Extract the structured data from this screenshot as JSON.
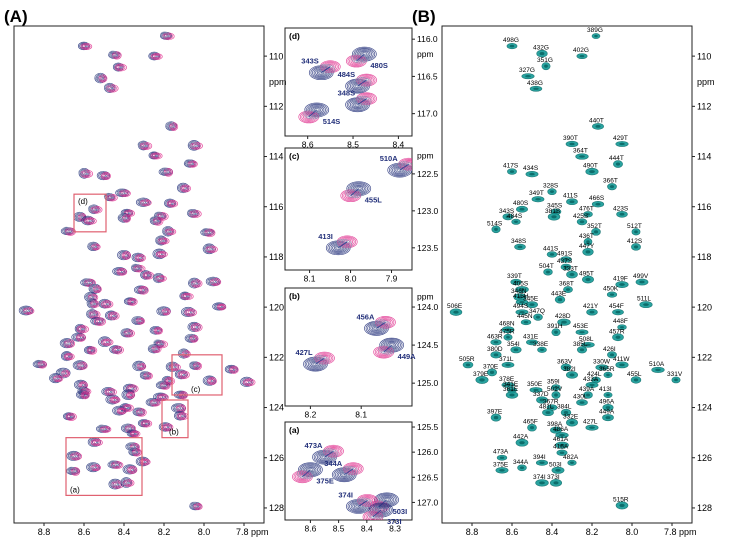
{
  "labels": {
    "A": "(A)",
    "B": "(B)",
    "ppm": "ppm"
  },
  "colors": {
    "navy": "#23307a",
    "pink": "#e0338f",
    "slate": "#8a93b4",
    "teal": "#179c99",
    "box": "#e06070",
    "arrow": "#3a4a96"
  },
  "chart_data": [
    {
      "id": "A_main",
      "type": "scatter",
      "title": "(A)",
      "xlabel": "ppm",
      "ylabel": "ppm",
      "xlim": [
        8.95,
        7.7
      ],
      "ylim": [
        108.8,
        128.6
      ],
      "xticks": [
        8.8,
        8.6,
        8.4,
        8.2,
        8.0,
        7.8
      ],
      "xtick_labels": [
        "8.8",
        "8.6",
        "8.4",
        "8.2",
        "8.0",
        "7.8 ppm"
      ],
      "yticks": [
        110,
        112,
        114,
        116,
        118,
        120,
        122,
        124,
        126,
        128
      ],
      "yticks_fmt": [
        "110",
        "112",
        "114",
        "116",
        "118",
        "120",
        "122",
        "124",
        "126",
        "128"
      ],
      "boxes": [
        {
          "label": "(a)",
          "x0": 8.69,
          "x1": 8.31,
          "y0": 125.2,
          "y1": 127.5
        },
        {
          "label": "(b)",
          "x0": 8.21,
          "x1": 8.08,
          "y0": 123.7,
          "y1": 125.2
        },
        {
          "label": "(c)",
          "x0": 8.16,
          "x1": 7.91,
          "y0": 121.9,
          "y1": 123.5
        },
        {
          "label": "(d)",
          "x0": 8.65,
          "x1": 8.49,
          "y0": 115.5,
          "y1": 117.0
        }
      ]
    },
    {
      "id": "d_inset",
      "type": "scatter",
      "title": "(d)",
      "xlim": [
        8.65,
        8.37
      ],
      "ylim": [
        115.85,
        117.3
      ],
      "xticks": [
        8.6,
        8.5,
        8.4
      ],
      "xtick_labels": [
        "8.6",
        "8.5",
        "8.4"
      ],
      "yticks": [
        116.0,
        116.5,
        117.0
      ],
      "yticks_fmt": [
        "116.0",
        "116.5",
        "117.0"
      ],
      "ppm_label_y": 116.2,
      "peaks": [
        {
          "label": "343S",
          "x": 8.57,
          "y": 116.45
        },
        {
          "label": "480S",
          "x": 8.475,
          "y": 116.2
        },
        {
          "label": "484S",
          "x": 8.49,
          "y": 116.63
        },
        {
          "label": "514S",
          "x": 8.58,
          "y": 116.95
        },
        {
          "label": "348S",
          "x": 8.49,
          "y": 116.88
        }
      ]
    },
    {
      "id": "c_inset",
      "type": "scatter",
      "title": "(c)",
      "xlim": [
        8.16,
        7.85
      ],
      "ylim": [
        122.15,
        123.8
      ],
      "xticks": [
        8.1,
        8.0,
        7.9
      ],
      "xtick_labels": [
        "8.1",
        "8.0",
        "7.9"
      ],
      "yticks": [
        122.5,
        123.0,
        123.5
      ],
      "yticks_fmt": [
        "122.5",
        "123.0",
        "123.5"
      ],
      "ppm_label_y": 122.25,
      "peaks": [
        {
          "label": "510A",
          "x": 7.88,
          "y": 122.45
        },
        {
          "label": "455L",
          "x": 7.98,
          "y": 122.7
        },
        {
          "label": "413I",
          "x": 8.03,
          "y": 123.5
        }
      ]
    },
    {
      "id": "b_inset",
      "type": "scatter",
      "title": "(b)",
      "xlim": [
        8.25,
        8.0
      ],
      "ylim": [
        123.75,
        125.3
      ],
      "xticks": [
        8.2,
        8.1
      ],
      "xtick_labels": [
        "8.2",
        "8.1"
      ],
      "yticks": [
        124.0,
        124.5,
        125.0
      ],
      "yticks_fmt": [
        "124.0",
        "124.5",
        "125.0"
      ],
      "ppm_label_y": 123.86,
      "peaks": [
        {
          "label": "456A",
          "x": 8.07,
          "y": 124.28
        },
        {
          "label": "449A",
          "x": 8.04,
          "y": 124.5
        },
        {
          "label": "427L",
          "x": 8.19,
          "y": 124.75
        }
      ]
    },
    {
      "id": "a_inset",
      "type": "scatter",
      "title": "(a)",
      "xlim": [
        8.69,
        8.24
      ],
      "ylim": [
        125.4,
        127.35
      ],
      "xticks": [
        8.6,
        8.5,
        8.4,
        8.3
      ],
      "xtick_labels": [
        "8.6",
        "8.5",
        "8.4",
        "8.3"
      ],
      "yticks": [
        125.5,
        126.0,
        126.5,
        127.0
      ],
      "yticks_fmt": [
        "125.5",
        "126.0",
        "126.5",
        "127.0"
      ],
      "peaks": [
        {
          "label": "473A",
          "x": 8.55,
          "y": 126.1
        },
        {
          "label": "375E",
          "x": 8.6,
          "y": 126.35
        },
        {
          "label": "344A",
          "x": 8.48,
          "y": 126.45
        },
        {
          "label": "503I",
          "x": 8.33,
          "y": 126.95
        },
        {
          "label": "374I",
          "x": 8.43,
          "y": 127.08
        },
        {
          "label": "373I",
          "x": 8.35,
          "y": 127.15
        }
      ]
    },
    {
      "id": "B_main",
      "type": "scatter",
      "title": "(B)",
      "xlabel": "ppm",
      "ylabel": "ppm",
      "xlim": [
        8.95,
        7.7
      ],
      "ylim": [
        108.8,
        128.6
      ],
      "xticks": [
        8.8,
        8.6,
        8.4,
        8.2,
        8.0,
        7.8
      ],
      "xtick_labels": [
        "8.8",
        "8.6",
        "8.4",
        "8.2",
        "8.0",
        "7.8 ppm"
      ],
      "yticks": [
        110,
        112,
        114,
        116,
        118,
        120,
        122,
        124,
        126,
        128
      ],
      "yticks_fmt": [
        "110",
        "112",
        "114",
        "116",
        "118",
        "120",
        "122",
        "124",
        "126",
        "128"
      ],
      "peaks": [
        {
          "label": "389G",
          "x": 8.18,
          "y": 109.2
        },
        {
          "label": "498G",
          "x": 8.6,
          "y": 109.6
        },
        {
          "label": "432G",
          "x": 8.45,
          "y": 109.9
        },
        {
          "label": "402G",
          "x": 8.25,
          "y": 110.0
        },
        {
          "label": "351G",
          "x": 8.43,
          "y": 110.4
        },
        {
          "label": "327G",
          "x": 8.52,
          "y": 110.8
        },
        {
          "label": "438G",
          "x": 8.48,
          "y": 111.3
        },
        {
          "label": "440T",
          "x": 8.17,
          "y": 112.8
        },
        {
          "label": "390T",
          "x": 8.3,
          "y": 113.5
        },
        {
          "label": "429T",
          "x": 8.05,
          "y": 113.5
        },
        {
          "label": "364T",
          "x": 8.25,
          "y": 114.0
        },
        {
          "label": "444T",
          "x": 8.07,
          "y": 114.3
        },
        {
          "label": "417S",
          "x": 8.6,
          "y": 114.6
        },
        {
          "label": "434S",
          "x": 8.5,
          "y": 114.7
        },
        {
          "label": "490T",
          "x": 8.2,
          "y": 114.6
        },
        {
          "label": "366T",
          "x": 8.1,
          "y": 115.2
        },
        {
          "label": "328S",
          "x": 8.4,
          "y": 115.4
        },
        {
          "label": "349T",
          "x": 8.47,
          "y": 115.7
        },
        {
          "label": "411S",
          "x": 8.3,
          "y": 115.8
        },
        {
          "label": "466S",
          "x": 8.17,
          "y": 115.9
        },
        {
          "label": "480S",
          "x": 8.55,
          "y": 116.1
        },
        {
          "label": "345S",
          "x": 8.38,
          "y": 116.2
        },
        {
          "label": "476T",
          "x": 8.22,
          "y": 116.3
        },
        {
          "label": "423S",
          "x": 8.05,
          "y": 116.3
        },
        {
          "label": "343S",
          "x": 8.62,
          "y": 116.4
        },
        {
          "label": "381S",
          "x": 8.39,
          "y": 116.4
        },
        {
          "label": "425S",
          "x": 8.25,
          "y": 116.6
        },
        {
          "label": "484S",
          "x": 8.58,
          "y": 116.6
        },
        {
          "label": "514S",
          "x": 8.68,
          "y": 116.9
        },
        {
          "label": "352T",
          "x": 8.18,
          "y": 117.0
        },
        {
          "label": "512T",
          "x": 7.98,
          "y": 117.0
        },
        {
          "label": "436T",
          "x": 8.22,
          "y": 117.4
        },
        {
          "label": "348S",
          "x": 8.56,
          "y": 117.6
        },
        {
          "label": "412S",
          "x": 7.98,
          "y": 117.6
        },
        {
          "label": "441S",
          "x": 8.4,
          "y": 117.9
        },
        {
          "label": "447Y",
          "x": 8.22,
          "y": 117.8
        },
        {
          "label": "491S",
          "x": 8.33,
          "y": 118.1
        },
        {
          "label": "437S",
          "x": 8.33,
          "y": 118.4
        },
        {
          "label": "504T",
          "x": 8.42,
          "y": 118.6
        },
        {
          "label": "333T",
          "x": 8.3,
          "y": 118.7
        },
        {
          "label": "495T",
          "x": 8.22,
          "y": 118.9
        },
        {
          "label": "339T",
          "x": 8.58,
          "y": 119.0
        },
        {
          "label": "419F",
          "x": 8.05,
          "y": 119.1
        },
        {
          "label": "499V",
          "x": 7.95,
          "y": 119.0
        },
        {
          "label": "405S",
          "x": 8.55,
          "y": 119.3
        },
        {
          "label": "368T",
          "x": 8.32,
          "y": 119.3
        },
        {
          "label": "346N",
          "x": 8.56,
          "y": 119.6
        },
        {
          "label": "450K",
          "x": 8.1,
          "y": 119.5
        },
        {
          "label": "415H",
          "x": 8.55,
          "y": 119.8
        },
        {
          "label": "443E",
          "x": 8.36,
          "y": 119.7
        },
        {
          "label": "345E",
          "x": 8.5,
          "y": 119.9
        },
        {
          "label": "511L",
          "x": 7.93,
          "y": 119.9
        },
        {
          "label": "506E",
          "x": 8.88,
          "y": 120.2
        },
        {
          "label": "494S",
          "x": 8.55,
          "y": 120.2
        },
        {
          "label": "421Y",
          "x": 8.2,
          "y": 120.2
        },
        {
          "label": "454F",
          "x": 8.07,
          "y": 120.2
        },
        {
          "label": "347Q",
          "x": 8.47,
          "y": 120.4
        },
        {
          "label": "445N",
          "x": 8.53,
          "y": 120.6
        },
        {
          "label": "428D",
          "x": 8.34,
          "y": 120.6
        },
        {
          "label": "448F",
          "x": 8.05,
          "y": 120.8
        },
        {
          "label": "468N",
          "x": 8.62,
          "y": 120.9
        },
        {
          "label": "391H",
          "x": 8.38,
          "y": 121.0
        },
        {
          "label": "453E",
          "x": 8.25,
          "y": 121.0
        },
        {
          "label": "475R",
          "x": 8.62,
          "y": 121.2
        },
        {
          "label": "457R",
          "x": 8.07,
          "y": 121.2
        },
        {
          "label": "463R",
          "x": 8.68,
          "y": 121.4
        },
        {
          "label": "431E",
          "x": 8.5,
          "y": 121.4
        },
        {
          "label": "508L",
          "x": 8.22,
          "y": 121.5
        },
        {
          "label": "354I",
          "x": 8.58,
          "y": 121.7
        },
        {
          "label": "338E",
          "x": 8.45,
          "y": 121.7
        },
        {
          "label": "385L",
          "x": 8.25,
          "y": 121.7
        },
        {
          "label": "426I",
          "x": 8.1,
          "y": 121.9
        },
        {
          "label": "380D",
          "x": 8.68,
          "y": 121.9
        },
        {
          "label": "505R",
          "x": 8.82,
          "y": 122.3
        },
        {
          "label": "371L",
          "x": 8.62,
          "y": 122.3
        },
        {
          "label": "363V",
          "x": 8.33,
          "y": 122.4
        },
        {
          "label": "330W",
          "x": 8.15,
          "y": 122.4
        },
        {
          "label": "411W",
          "x": 8.05,
          "y": 122.3
        },
        {
          "label": "510A",
          "x": 7.87,
          "y": 122.5
        },
        {
          "label": "370E",
          "x": 8.7,
          "y": 122.6
        },
        {
          "label": "382I",
          "x": 8.3,
          "y": 122.7
        },
        {
          "label": "365R",
          "x": 8.12,
          "y": 122.7
        },
        {
          "label": "379E",
          "x": 8.75,
          "y": 122.9
        },
        {
          "label": "424L",
          "x": 8.18,
          "y": 122.9
        },
        {
          "label": "455L",
          "x": 7.98,
          "y": 122.9
        },
        {
          "label": "331V",
          "x": 7.78,
          "y": 122.9
        },
        {
          "label": "378E",
          "x": 8.62,
          "y": 123.1
        },
        {
          "label": "359I",
          "x": 8.38,
          "y": 123.2
        },
        {
          "label": "433A",
          "x": 8.2,
          "y": 123.1
        },
        {
          "label": "341E",
          "x": 8.6,
          "y": 123.3
        },
        {
          "label": "350E",
          "x": 8.48,
          "y": 123.3
        },
        {
          "label": "502V",
          "x": 8.38,
          "y": 123.5
        },
        {
          "label": "439A",
          "x": 8.22,
          "y": 123.5
        },
        {
          "label": "413I",
          "x": 8.12,
          "y": 123.5
        },
        {
          "label": "361E",
          "x": 8.6,
          "y": 123.5
        },
        {
          "label": "337D",
          "x": 8.45,
          "y": 123.7
        },
        {
          "label": "430L",
          "x": 8.25,
          "y": 123.8
        },
        {
          "label": "367R",
          "x": 8.4,
          "y": 124.0
        },
        {
          "label": "496A",
          "x": 8.12,
          "y": 124.0
        },
        {
          "label": "481L",
          "x": 8.42,
          "y": 124.2
        },
        {
          "label": "384L",
          "x": 8.33,
          "y": 124.2
        },
        {
          "label": "449A",
          "x": 8.12,
          "y": 124.4
        },
        {
          "label": "397E",
          "x": 8.68,
          "y": 124.4
        },
        {
          "label": "332E",
          "x": 8.3,
          "y": 124.6
        },
        {
          "label": "465F",
          "x": 8.5,
          "y": 124.8
        },
        {
          "label": "427L",
          "x": 8.2,
          "y": 124.8
        },
        {
          "label": "398A",
          "x": 8.38,
          "y": 124.9
        },
        {
          "label": "486A",
          "x": 8.35,
          "y": 125.1
        },
        {
          "label": "442A",
          "x": 8.55,
          "y": 125.4
        },
        {
          "label": "461A",
          "x": 8.35,
          "y": 125.5
        },
        {
          "label": "416A",
          "x": 8.35,
          "y": 125.8
        },
        {
          "label": "473A",
          "x": 8.65,
          "y": 126.0
        },
        {
          "label": "482A",
          "x": 8.3,
          "y": 126.2
        },
        {
          "label": "394I",
          "x": 8.45,
          "y": 126.2
        },
        {
          "label": "344A",
          "x": 8.55,
          "y": 126.4
        },
        {
          "label": "503I",
          "x": 8.37,
          "y": 126.5
        },
        {
          "label": "375E",
          "x": 8.65,
          "y": 126.5
        },
        {
          "label": "374I",
          "x": 8.45,
          "y": 127.0
        },
        {
          "label": "373I",
          "x": 8.38,
          "y": 127.0
        },
        {
          "label": "515R",
          "x": 8.05,
          "y": 127.9
        }
      ]
    }
  ]
}
